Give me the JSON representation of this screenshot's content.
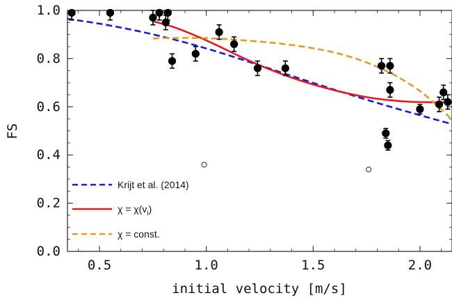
{
  "chart_data": {
    "type": "scatter",
    "xlabel": "initial velocity [m/s]",
    "ylabel": "FS",
    "xlim": [
      0.35,
      2.15
    ],
    "ylim": [
      0.0,
      1.0
    ],
    "xticks": [
      0.5,
      1.0,
      1.5,
      2.0
    ],
    "xtick_labels": [
      "0.5",
      "1.0",
      "1.5",
      "2.0"
    ],
    "yticks": [
      0.0,
      0.2,
      0.4,
      0.6,
      0.8,
      1.0
    ],
    "ytick_labels": [
      "0.0",
      "0.2",
      "0.4",
      "0.6",
      "0.8",
      "1.0"
    ],
    "grid": false,
    "legend_position": "bottom-left",
    "series": [
      {
        "kind": "points",
        "marker": "filled-circle-with-errorbars",
        "points": [
          {
            "x": 0.37,
            "y": 0.99,
            "err": 0.03
          },
          {
            "x": 0.55,
            "y": 0.99,
            "err": 0.03
          },
          {
            "x": 0.75,
            "y": 0.97,
            "err": 0.03
          },
          {
            "x": 0.78,
            "y": 0.99,
            "err": 0.03
          },
          {
            "x": 0.81,
            "y": 0.95,
            "err": 0.03
          },
          {
            "x": 0.82,
            "y": 0.99,
            "err": 0.03
          },
          {
            "x": 0.84,
            "y": 0.79,
            "err": 0.03
          },
          {
            "x": 0.95,
            "y": 0.82,
            "err": 0.03
          },
          {
            "x": 1.06,
            "y": 0.91,
            "err": 0.03
          },
          {
            "x": 1.13,
            "y": 0.86,
            "err": 0.03
          },
          {
            "x": 1.24,
            "y": 0.76,
            "err": 0.03
          },
          {
            "x": 1.37,
            "y": 0.76,
            "err": 0.03
          },
          {
            "x": 1.82,
            "y": 0.77,
            "err": 0.03
          },
          {
            "x": 1.84,
            "y": 0.49,
            "err": 0.02
          },
          {
            "x": 1.85,
            "y": 0.44,
            "err": 0.02
          },
          {
            "x": 1.86,
            "y": 0.77,
            "err": 0.03
          },
          {
            "x": 1.86,
            "y": 0.67,
            "err": 0.03
          },
          {
            "x": 2.0,
            "y": 0.59,
            "err": 0.02
          },
          {
            "x": 2.09,
            "y": 0.61,
            "err": 0.03
          },
          {
            "x": 2.11,
            "y": 0.66,
            "err": 0.03
          },
          {
            "x": 2.13,
            "y": 0.62,
            "err": 0.03
          }
        ]
      },
      {
        "kind": "points",
        "marker": "open-circle",
        "points": [
          {
            "x": 0.99,
            "y": 0.36
          },
          {
            "x": 1.76,
            "y": 0.34
          }
        ]
      },
      {
        "kind": "line",
        "name": "Krijt et al. (2014)",
        "color": "#1a1adf",
        "dash": "dashed",
        "x": [
          0.35,
          0.5,
          0.65,
          0.8,
          0.95,
          1.1,
          1.25,
          1.4,
          1.55,
          1.7,
          1.85,
          2.0,
          2.15
        ],
        "y": [
          0.965,
          0.945,
          0.92,
          0.89,
          0.855,
          0.815,
          0.772,
          0.728,
          0.685,
          0.643,
          0.603,
          0.565,
          0.528
        ]
      },
      {
        "kind": "line",
        "name": "χ = χ(v_i)",
        "color": "#e31a1c",
        "dash": "solid",
        "x": [
          0.75,
          0.85,
          0.95,
          1.05,
          1.15,
          1.25,
          1.35,
          1.45,
          1.55,
          1.65,
          1.75,
          1.85,
          1.95,
          2.05,
          2.15
        ],
        "y": [
          0.955,
          0.93,
          0.895,
          0.855,
          0.812,
          0.772,
          0.737,
          0.706,
          0.68,
          0.658,
          0.64,
          0.628,
          0.621,
          0.619,
          0.618
        ]
      },
      {
        "kind": "line",
        "name": "χ = const.",
        "color": "#e69a23",
        "dash": "dashed",
        "x": [
          0.75,
          0.9,
          1.05,
          1.2,
          1.35,
          1.5,
          1.6,
          1.7,
          1.8,
          1.9,
          2.0,
          2.1,
          2.15
        ],
        "y": [
          0.884,
          0.886,
          0.883,
          0.874,
          0.862,
          0.843,
          0.825,
          0.8,
          0.766,
          0.722,
          0.665,
          0.59,
          0.545
        ]
      }
    ],
    "legend": [
      {
        "text": "Krijt et al. (2014)",
        "color": "#1a1adf",
        "dash": "dashed"
      },
      {
        "text_main": "χ = χ(v",
        "text_sub": "i",
        "text_end": ")",
        "color": "#e31a1c",
        "dash": "solid"
      },
      {
        "text": "χ = const.",
        "color": "#e69a23",
        "dash": "dashed"
      }
    ]
  }
}
